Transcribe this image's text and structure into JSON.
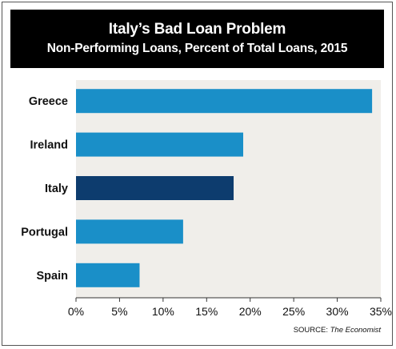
{
  "header": {
    "title": "Italy’s Bad Loan Problem",
    "subtitle": "Non-Performing Loans, Percent of Total Loans, 2015"
  },
  "source": {
    "label": "SOURCE:",
    "name": "The Economist"
  },
  "chart_data": {
    "type": "bar",
    "orientation": "horizontal",
    "title": "Italy’s Bad Loan Problem",
    "subtitle": "Non-Performing Loans, Percent of Total Loans, 2015",
    "categories": [
      "Greece",
      "Ireland",
      "Italy",
      "Portugal",
      "Spain"
    ],
    "values": [
      34,
      19.2,
      18.1,
      12.3,
      7.3
    ],
    "bar_colors": [
      "#1a8fc8",
      "#1a8fc8",
      "#0d3c6e",
      "#1a8fc8",
      "#1a8fc8"
    ],
    "xlim": [
      0,
      35
    ],
    "xticks": [
      0,
      5,
      10,
      15,
      20,
      25,
      30,
      35
    ],
    "xtick_labels": [
      "0%",
      "5%",
      "10%",
      "15%",
      "20%",
      "25%",
      "30%",
      "35%"
    ],
    "xlabel": "",
    "ylabel": "",
    "grid": false,
    "background_color": "#f0eeea"
  }
}
